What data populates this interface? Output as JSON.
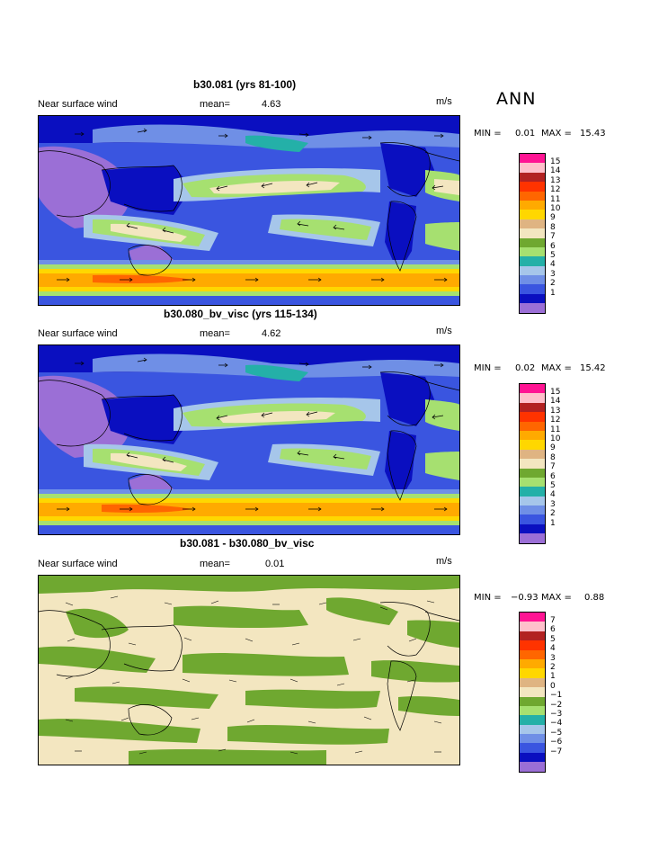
{
  "season": "ANN",
  "palette": [
    "#9b6fd6",
    "#0a0fc0",
    "#3a55e0",
    "#6f8fe6",
    "#a6c6ea",
    "#24b0a8",
    "#a6e070",
    "#6fa830",
    "#f3e6c0",
    "#dfb482",
    "#ffd700",
    "#ffaa00",
    "#ff6600",
    "#ff3300",
    "#b22222",
    "#ffc0cb",
    "#ff1493"
  ],
  "panels": [
    {
      "title": "b30.081 (yrs 81-100)",
      "field_label": "Near surface wind",
      "mean_label": "mean=",
      "mean_value": "4.63",
      "units": "m/s",
      "min_label": "MIN =",
      "min_value": "0.01",
      "max_label": "MAX =",
      "max_value": "15.43",
      "levels": [
        "15",
        "14",
        "13",
        "12",
        "11",
        "10",
        "9",
        "8",
        "7",
        "6",
        "5",
        "4",
        "3",
        "2",
        "1"
      ]
    },
    {
      "title": "b30.080_bv_visc (yrs 115-134)",
      "field_label": "Near surface wind",
      "mean_label": "mean=",
      "mean_value": "4.62",
      "units": "m/s",
      "min_label": "MIN =",
      "min_value": "0.02",
      "max_label": "MAX =",
      "max_value": "15.42",
      "levels": [
        "15",
        "14",
        "13",
        "12",
        "11",
        "10",
        "9",
        "8",
        "7",
        "6",
        "5",
        "4",
        "3",
        "2",
        "1"
      ]
    },
    {
      "title": "b30.081 - b30.080_bv_visc",
      "field_label": "Near surface wind",
      "mean_label": "mean=",
      "mean_value": "0.01",
      "units": "m/s",
      "min_label": "MIN =",
      "min_value": "−0.93",
      "max_label": "MAX =",
      "max_value": "0.88",
      "levels": [
        "7",
        "6",
        "5",
        "4",
        "3",
        "2",
        "1",
        "0",
        "−1",
        "−2",
        "−3",
        "−4",
        "−5",
        "−6",
        "−7"
      ]
    }
  ]
}
